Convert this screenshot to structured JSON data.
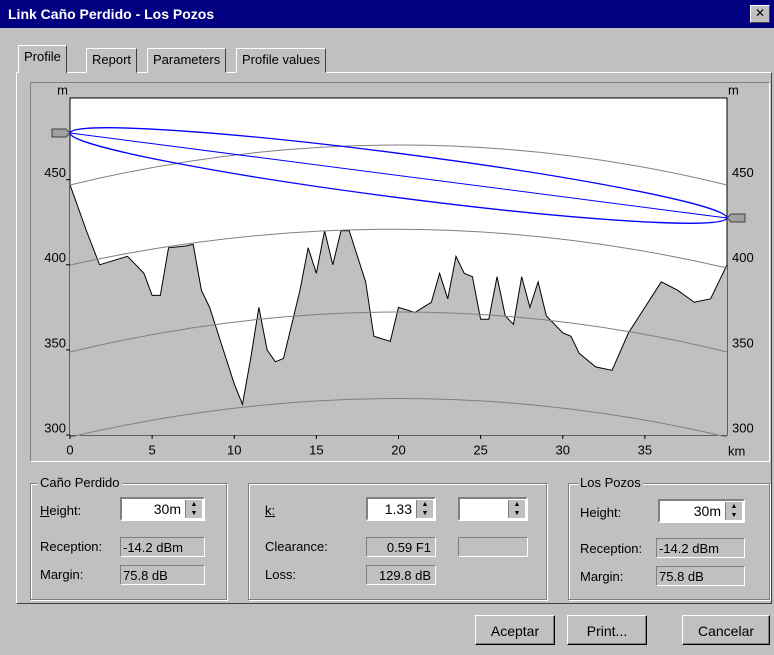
{
  "window": {
    "title": "Link Caño Perdido - Los Pozos"
  },
  "tabs": [
    "Profile",
    "Report",
    "Parameters",
    "Profile values"
  ],
  "chart_data": {
    "type": "area",
    "y_unit_left": "m",
    "y_unit_right": "m",
    "x_unit": "km",
    "xlim": [
      0,
      40
    ],
    "ylim": [
      300,
      498
    ],
    "xticks": [
      0,
      5,
      10,
      15,
      20,
      25,
      30,
      35
    ],
    "yticks": [
      300,
      350,
      400,
      450
    ],
    "x": [
      0,
      1,
      1.8,
      3.5,
      4.5,
      5,
      5.5,
      6,
      7,
      7.5,
      8,
      8.5,
      9,
      10,
      10.5,
      11,
      11.5,
      12,
      12.5,
      13,
      14,
      14.5,
      15,
      15.5,
      16,
      16.5,
      17,
      18,
      18.5,
      19.5,
      20,
      21,
      22,
      22.5,
      23,
      23.5,
      24,
      24.5,
      25,
      25.5,
      26,
      26.5,
      27,
      27.5,
      28,
      28.5,
      29,
      30,
      30.5,
      31,
      32,
      33,
      34,
      35,
      36,
      37,
      38,
      39,
      40
    ],
    "values": [
      447,
      420,
      400,
      405,
      395,
      382,
      382,
      410,
      411,
      412,
      385,
      375,
      360,
      330,
      318,
      345,
      375,
      350,
      343,
      345,
      385,
      410,
      395,
      420,
      400,
      420,
      420,
      390,
      358,
      355,
      375,
      372,
      378,
      395,
      380,
      405,
      395,
      393,
      368,
      368,
      393,
      370,
      365,
      393,
      375,
      390,
      370,
      360,
      358,
      348,
      340,
      338,
      360,
      375,
      390,
      385,
      378,
      380,
      400
    ],
    "color": "#c0c0c0"
  },
  "left_panel": {
    "title": "Caño Perdido",
    "height_label": "Height:",
    "height": "30m",
    "reception_label": "Reception:",
    "reception": "-14.2 dBm",
    "margin_label": "Margin:",
    "margin": "75.8 dB"
  },
  "middle_panel": {
    "k_label": "k:",
    "k": "1.33",
    "clearance_label": "Clearance:",
    "clearance": "0.59 F1",
    "loss_label": "Loss:",
    "loss": "129.8 dB"
  },
  "right_panel": {
    "title": "Los Pozos",
    "height_label": "Height:",
    "height": "30m",
    "reception_label": "Reception:",
    "reception": "-14.2 dBm",
    "margin_label": "Margin:",
    "margin": "75.8 dB"
  },
  "buttons": [
    "Aceptar",
    "Print...",
    "Cancelar"
  ]
}
